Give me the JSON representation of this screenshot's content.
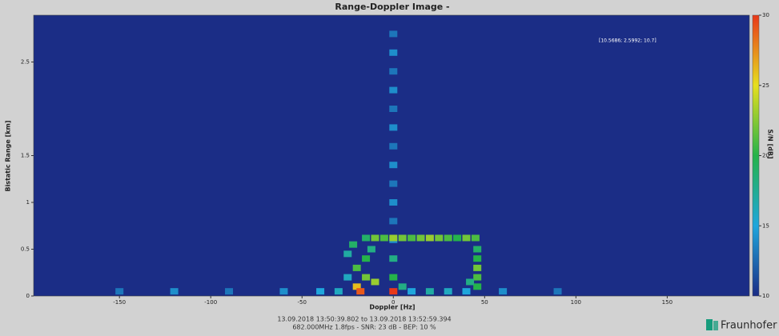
{
  "chart_data": {
    "type": "heatmap",
    "title": "Range-Doppler Image -",
    "x_label": "Doppler [Hz]",
    "y_label": "Bistatic Range [km]",
    "colorbar_label": "S/N [dB]",
    "annotation": "[10.5686; 2.5992; 10.7]",
    "footer": [
      "13.09.2018 13:50:39.802 to 13.09.2018 13:52:59.394",
      "682.000MHz  1.8fps - SNR: 23 dB - BEP: 10 %"
    ],
    "logo": "Fraunhofer",
    "xlim": [
      -197,
      195
    ],
    "xticks": [
      -150,
      -100,
      -50,
      0,
      50,
      100,
      150
    ],
    "ylim": [
      0,
      3
    ],
    "yticks": [
      0,
      0.5,
      1,
      1.5,
      2.5
    ],
    "clim": [
      10,
      30
    ],
    "cticks": [
      10,
      15,
      20,
      25,
      30
    ],
    "colormap": [
      "#1b2d86",
      "#1fa6dc",
      "#25b34a",
      "#e6df1e",
      "#e8381a"
    ],
    "cells": {
      "x": [
        0,
        0,
        0,
        0,
        0,
        0,
        0,
        0,
        0,
        0,
        0,
        0,
        0,
        0,
        -15,
        -10,
        -5,
        0,
        5,
        10,
        15,
        20,
        25,
        30,
        35,
        40,
        45,
        46,
        46,
        46,
        46,
        46,
        42,
        -20,
        -20,
        -15,
        -15,
        -25,
        -22,
        -12,
        -18,
        -10,
        -25,
        -150,
        -120,
        -90,
        -60,
        -40,
        -30,
        10,
        20,
        30,
        40,
        60,
        90,
        0,
        5
      ],
      "y": [
        0.2,
        0.4,
        0.6,
        0.8,
        1.0,
        1.2,
        1.4,
        1.6,
        1.8,
        2.0,
        2.2,
        2.4,
        2.6,
        2.8,
        0.62,
        0.62,
        0.62,
        0.62,
        0.62,
        0.62,
        0.62,
        0.62,
        0.62,
        0.62,
        0.62,
        0.62,
        0.62,
        0.1,
        0.2,
        0.3,
        0.4,
        0.5,
        0.15,
        0.1,
        0.3,
        0.2,
        0.4,
        0.45,
        0.55,
        0.5,
        0.05,
        0.15,
        0.2,
        0.05,
        0.05,
        0.05,
        0.05,
        0.05,
        0.05,
        0.05,
        0.05,
        0.05,
        0.05,
        0.05,
        0.05,
        0.05,
        0.1
      ],
      "values": [
        20,
        18,
        14,
        13,
        14,
        13,
        14,
        13,
        14,
        13,
        14,
        13,
        14,
        13,
        19,
        22,
        21,
        23,
        22,
        21,
        22,
        23,
        22,
        21,
        20,
        22,
        21,
        20,
        21,
        22,
        20,
        19,
        18,
        26,
        21,
        22,
        20,
        17,
        19,
        18,
        29,
        23,
        16,
        13,
        14,
        13,
        14,
        15,
        16,
        15,
        17,
        16,
        15,
        14,
        13,
        30,
        18
      ]
    }
  }
}
